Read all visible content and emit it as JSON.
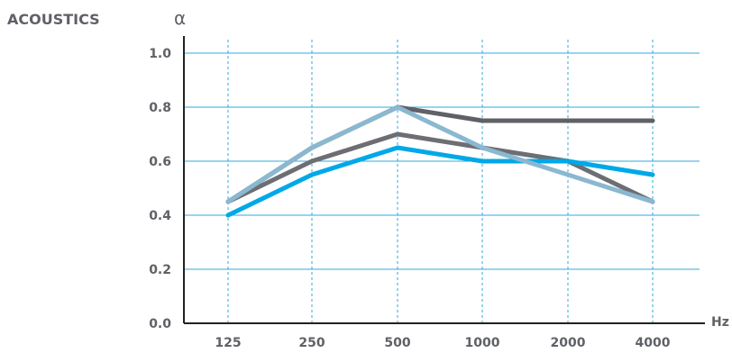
{
  "section_title": "ACOUSTICS",
  "chart_data": {
    "type": "line",
    "y_symbol": "α",
    "x_unit": "Hz",
    "categories": [
      "125",
      "250",
      "500",
      "1000",
      "2000",
      "4000"
    ],
    "y_ticks": [
      "0.0",
      "0.2",
      "0.4",
      "0.6",
      "0.8",
      "1.0"
    ],
    "ylim": [
      0,
      1.05
    ],
    "grid": true,
    "series": [
      {
        "values": [
          0.45,
          0.65,
          0.8,
          0.75,
          0.75,
          0.75
        ],
        "color": "#5f6167"
      },
      {
        "values": [
          0.45,
          0.6,
          0.7,
          0.65,
          0.6,
          0.45
        ],
        "color": "#6d6e73"
      },
      {
        "values": [
          0.4,
          0.55,
          0.65,
          0.6,
          0.6,
          0.55
        ],
        "color": "#00a8e8"
      },
      {
        "values": [
          0.45,
          0.65,
          0.8,
          0.65,
          0.55,
          0.45
        ],
        "color": "#8ab8d0"
      }
    ],
    "colors": {
      "axis": "#222222",
      "grid": "#2fa8e0",
      "text": "#5f6167"
    }
  }
}
